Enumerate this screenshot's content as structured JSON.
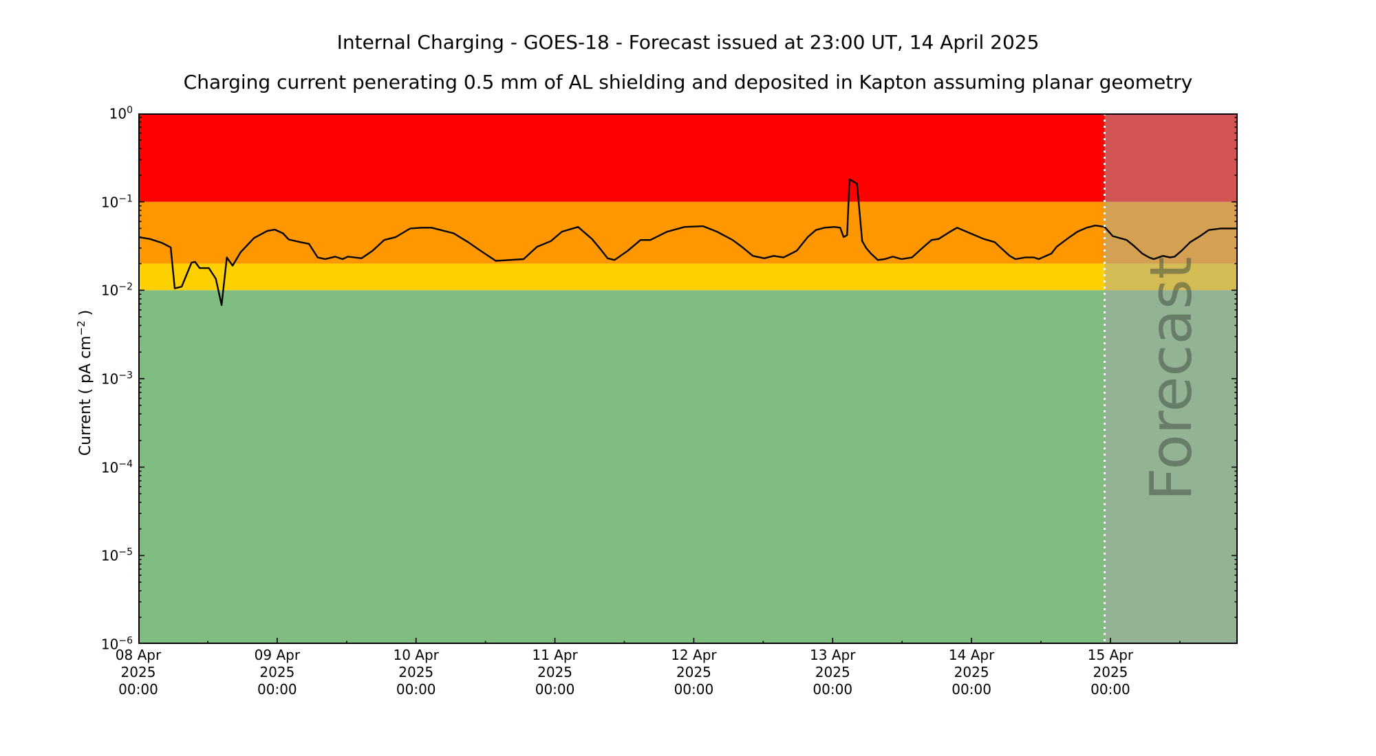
{
  "titles": {
    "main": "Internal Charging - GOES-18 - Forecast issued at 23:00 UT, 14 April 2025",
    "subtitle": "Charging current penerating 0.5 mm of AL shielding and deposited in Kapton assuming planar geometry"
  },
  "y_axis": {
    "label_main": "Current ( pA cm",
    "label_sup": "−2",
    "label_end": " )"
  },
  "forecast": {
    "watermark": "Forecast",
    "issued": "23:00 UT, 14 April 2025"
  },
  "colors": {
    "background": "#ffffff",
    "axis": "#000000",
    "line": "#000000",
    "divider": "#ffffff",
    "forecast_overlay": "rgba(168,168,168,0.5)",
    "red_band": "#ff0000",
    "orange_band": "#ff9800",
    "yellow_band": "#ffd000",
    "green_band": "#7fbe80"
  },
  "chart_data": {
    "type": "line",
    "title": "Internal Charging - GOES-18 - Forecast issued at 23:00 UT, 14 April 2025",
    "subtitle": "Charging current penerating 0.5 mm of AL shielding and deposited in Kapton assuming planar geometry",
    "xlabel": "",
    "ylabel": "Current ( pA cm^-2 )",
    "y_scale": "log",
    "ylim": [
      1e-06,
      1
    ],
    "x_unit": "hours since 2025-04-08 00:00 UT",
    "xlim": [
      0,
      190
    ],
    "grid": false,
    "legend": "none",
    "x_ticks": [
      {
        "hour": 0,
        "lines": [
          "08 Apr",
          "2025",
          "00:00"
        ]
      },
      {
        "hour": 24,
        "lines": [
          "09 Apr",
          "2025",
          "00:00"
        ]
      },
      {
        "hour": 48,
        "lines": [
          "10 Apr",
          "2025",
          "00:00"
        ]
      },
      {
        "hour": 72,
        "lines": [
          "11 Apr",
          "2025",
          "00:00"
        ]
      },
      {
        "hour": 96,
        "lines": [
          "12 Apr",
          "2025",
          "00:00"
        ]
      },
      {
        "hour": 120,
        "lines": [
          "13 Apr",
          "2025",
          "00:00"
        ]
      },
      {
        "hour": 144,
        "lines": [
          "14 Apr",
          "2025",
          "00:00"
        ]
      },
      {
        "hour": 168,
        "lines": [
          "15 Apr",
          "2025",
          "00:00"
        ]
      }
    ],
    "x_minor_tick_hours": [
      12,
      36,
      60,
      84,
      108,
      132,
      156,
      180
    ],
    "y_ticks": [
      {
        "base": "10",
        "exp": "0",
        "value": 1
      },
      {
        "base": "10",
        "exp": "−1",
        "value": 0.1
      },
      {
        "base": "10",
        "exp": "−2",
        "value": 0.01
      },
      {
        "base": "10",
        "exp": "−3",
        "value": 0.001
      },
      {
        "base": "10",
        "exp": "−4",
        "value": 0.0001
      },
      {
        "base": "10",
        "exp": "−5",
        "value": 1e-05
      },
      {
        "base": "10",
        "exp": "−6",
        "value": 1e-06
      }
    ],
    "bands": [
      {
        "name": "red",
        "from": 0.1,
        "to": 1,
        "color": "#ff0000"
      },
      {
        "name": "orange",
        "from": 0.02,
        "to": 0.1,
        "color": "#ff9800"
      },
      {
        "name": "yellow",
        "from": 0.01,
        "to": 0.02,
        "color": "#ffd000"
      },
      {
        "name": "green",
        "from": 1e-06,
        "to": 0.01,
        "color": "#7fbe80"
      }
    ],
    "forecast_start_hour": 167,
    "series": [
      {
        "name": "charging current",
        "color": "#000000",
        "points": [
          [
            0,
            0.04
          ],
          [
            2,
            0.038
          ],
          [
            4,
            0.0345
          ],
          [
            5,
            0.032
          ],
          [
            5.6,
            0.0305
          ],
          [
            6.3,
            0.0105
          ],
          [
            7.5,
            0.011
          ],
          [
            9.2,
            0.0205
          ],
          [
            9.8,
            0.021
          ],
          [
            10.6,
            0.0178
          ],
          [
            12.2,
            0.0178
          ],
          [
            13.4,
            0.0135
          ],
          [
            14.4,
            0.0068
          ],
          [
            15.3,
            0.0235
          ],
          [
            16.3,
            0.019
          ],
          [
            17.7,
            0.027
          ],
          [
            20,
            0.039
          ],
          [
            22.3,
            0.047
          ],
          [
            23.6,
            0.0485
          ],
          [
            25,
            0.044
          ],
          [
            26,
            0.0375
          ],
          [
            28,
            0.035
          ],
          [
            29.5,
            0.0335
          ],
          [
            31,
            0.0235
          ],
          [
            32.3,
            0.0225
          ],
          [
            34,
            0.024
          ],
          [
            35.3,
            0.0225
          ],
          [
            36.2,
            0.024
          ],
          [
            38.6,
            0.023
          ],
          [
            40.5,
            0.028
          ],
          [
            42.5,
            0.037
          ],
          [
            44.5,
            0.04
          ],
          [
            47,
            0.05
          ],
          [
            49,
            0.051
          ],
          [
            50.7,
            0.051
          ],
          [
            54.5,
            0.044
          ],
          [
            57,
            0.035
          ],
          [
            59.5,
            0.027
          ],
          [
            61.8,
            0.0215
          ],
          [
            64.1,
            0.022
          ],
          [
            66.6,
            0.0225
          ],
          [
            68.9,
            0.031
          ],
          [
            71.3,
            0.036
          ],
          [
            73.2,
            0.046
          ],
          [
            76,
            0.052
          ],
          [
            78.4,
            0.038
          ],
          [
            79.9,
            0.029
          ],
          [
            81.1,
            0.023
          ],
          [
            82.3,
            0.022
          ],
          [
            84.6,
            0.028
          ],
          [
            86.8,
            0.037
          ],
          [
            88.5,
            0.037
          ],
          [
            91.4,
            0.046
          ],
          [
            94.4,
            0.052
          ],
          [
            97.6,
            0.053
          ],
          [
            100,
            0.046
          ],
          [
            102.7,
            0.037
          ],
          [
            104.3,
            0.031
          ],
          [
            106.2,
            0.0245
          ],
          [
            108.2,
            0.023
          ],
          [
            109.8,
            0.0245
          ],
          [
            111.5,
            0.0235
          ],
          [
            113.8,
            0.028
          ],
          [
            115.7,
            0.04
          ],
          [
            117.1,
            0.048
          ],
          [
            118.6,
            0.051
          ],
          [
            120.3,
            0.052
          ],
          [
            121.3,
            0.051
          ],
          [
            121.9,
            0.04
          ],
          [
            122.5,
            0.042
          ],
          [
            122.9,
            0.18
          ],
          [
            124.2,
            0.16
          ],
          [
            125.1,
            0.036
          ],
          [
            125.8,
            0.03
          ],
          [
            126.6,
            0.026
          ],
          [
            127.8,
            0.022
          ],
          [
            129,
            0.0225
          ],
          [
            130.4,
            0.024
          ],
          [
            131.9,
            0.0225
          ],
          [
            133.7,
            0.0235
          ],
          [
            135.5,
            0.03
          ],
          [
            137.1,
            0.037
          ],
          [
            138.3,
            0.038
          ],
          [
            140.3,
            0.046
          ],
          [
            141.5,
            0.051
          ],
          [
            143.8,
            0.044
          ],
          [
            146.1,
            0.038
          ],
          [
            148,
            0.035
          ],
          [
            149.1,
            0.03
          ],
          [
            150.6,
            0.0245
          ],
          [
            151.6,
            0.0225
          ],
          [
            153.3,
            0.0235
          ],
          [
            154.8,
            0.0235
          ],
          [
            155.6,
            0.0225
          ],
          [
            157.8,
            0.026
          ],
          [
            158.7,
            0.031
          ],
          [
            160.5,
            0.038
          ],
          [
            162.3,
            0.046
          ],
          [
            163.9,
            0.051
          ],
          [
            165.4,
            0.054
          ],
          [
            167,
            0.052
          ],
          [
            168.4,
            0.041
          ],
          [
            170.8,
            0.037
          ],
          [
            172,
            0.032
          ],
          [
            173.5,
            0.026
          ],
          [
            174.7,
            0.0235
          ],
          [
            175.5,
            0.0225
          ],
          [
            177.1,
            0.0245
          ],
          [
            178.3,
            0.0235
          ],
          [
            179.1,
            0.024
          ],
          [
            180.3,
            0.028
          ],
          [
            181.8,
            0.035
          ],
          [
            183.5,
            0.041
          ],
          [
            185,
            0.048
          ],
          [
            187.1,
            0.05
          ],
          [
            190,
            0.05
          ]
        ]
      }
    ]
  }
}
